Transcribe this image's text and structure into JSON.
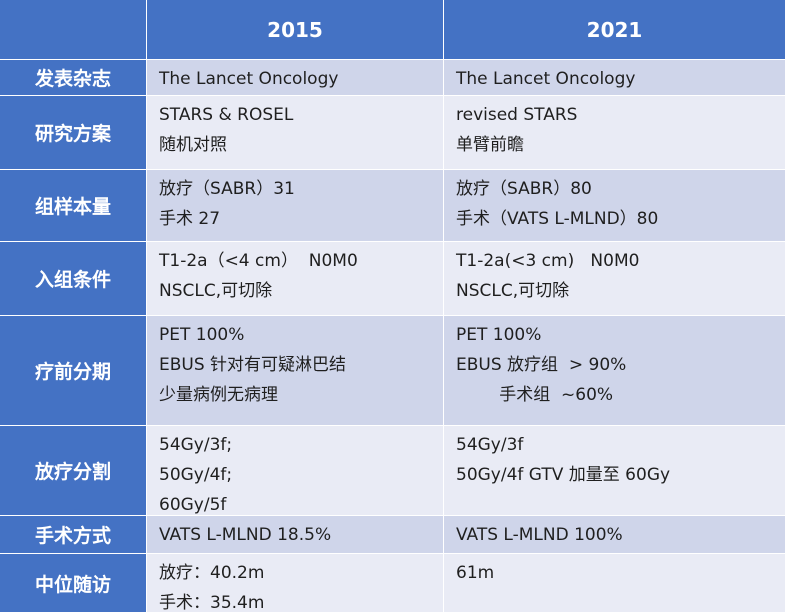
{
  "header": {
    "col1": "2015",
    "col2": "2021"
  },
  "rows": [
    {
      "label": "发表杂志",
      "c2015": [
        "The Lancet Oncology"
      ],
      "c2021": [
        "The Lancet Oncology"
      ]
    },
    {
      "label": "研究方案",
      "c2015": [
        "STARS & ROSEL",
        "随机对照"
      ],
      "c2021": [
        "revised STARS",
        "单臂前瞻"
      ]
    },
    {
      "label": "组样本量",
      "c2015": [
        "放疗（SABR）31",
        "手术 27"
      ],
      "c2021": [
        "放疗（SABR）80",
        "手术（VATS L-MLND）80"
      ]
    },
    {
      "label": "入组条件",
      "c2015": [
        "T1-2a（<4 cm）  N0M0",
        "NSCLC,可切除"
      ],
      "c2021": [
        "T1-2a(<3 cm)   N0M0",
        "NSCLC,可切除"
      ]
    },
    {
      "label": "疗前分期",
      "c2015": [
        "PET 100%",
        "EBUS 针对有可疑淋巴结",
        "少量病例无病理"
      ],
      "c2021": [
        "PET 100%",
        "EBUS 放疗组  > 90%",
        "        手术组  ~60%"
      ]
    },
    {
      "label": "放疗分割",
      "c2015": [
        "54Gy/3f;",
        "50Gy/4f;",
        "60Gy/5f"
      ],
      "c2021": [
        "54Gy/3f",
        "50Gy/4f GTV 加量至 60Gy"
      ]
    },
    {
      "label": "手术方式",
      "c2015": [
        "VATS L-MLND 18.5%"
      ],
      "c2021": [
        "VATS L-MLND 100%"
      ]
    },
    {
      "label": "中位随访",
      "c2015": [
        "放疗：40.2m",
        "手术：35.4m"
      ],
      "c2021": [
        "61m"
      ]
    }
  ]
}
